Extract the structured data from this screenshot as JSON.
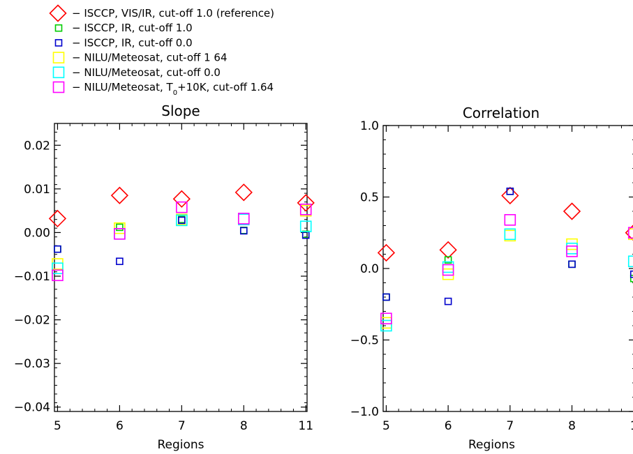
{
  "legend": {
    "entries": [
      {
        "label": "ISCCP, VIS/IR, cut-off 1.0 (reference)",
        "marker": "diamond",
        "color": "#ff0000"
      },
      {
        "label": "ISCCP, IR, cut-off 1.0",
        "marker": "small-square",
        "color": "#00cc00"
      },
      {
        "label": "ISCCP, IR, cut-off 0.0",
        "marker": "small-square",
        "color": "#0000cc"
      },
      {
        "label": "NILU/Meteosat, cut-off 1 64",
        "marker": "square",
        "color": "#ffff00"
      },
      {
        "label": "NILU/Meteosat, cut-off 0.0",
        "marker": "square",
        "color": "#00ffff"
      },
      {
        "label": "NILU/Meteosat, T",
        "label_subscript": "0",
        "label_suffix": "+10K, cut-off 1.64",
        "marker": "square",
        "color": "#ff00ff"
      }
    ]
  },
  "chart_data": [
    {
      "type": "scatter",
      "title": "Slope",
      "xlabel": "Regions",
      "ylabel": "",
      "categories": [
        "5",
        "6",
        "7",
        "8",
        "11"
      ],
      "xlim": [
        -0.05,
        4.02
      ],
      "ylim": [
        -0.041,
        0.025
      ],
      "yticks": [
        -0.04,
        -0.03,
        -0.02,
        -0.01,
        0.0,
        0.01,
        0.02
      ],
      "ytick_labels": [
        "−0.04",
        "−0.03",
        "−0.02",
        "−0.01",
        "0.00",
        "0.01",
        "0.02"
      ],
      "grid": false,
      "series": [
        {
          "name": "ISCCP, VIS/IR, cut-off 1.0 (reference)",
          "color": "#ff0000",
          "marker": "diamond",
          "values": [
            0.0032,
            0.0085,
            0.0077,
            0.0092,
            0.0068
          ]
        },
        {
          "name": "ISCCP, IR, cut-off 1.0",
          "color": "#00cc00",
          "marker": "small-square",
          "values": [
            -0.0038,
            0.0012,
            0.003,
            0.0005,
            -0.0004
          ]
        },
        {
          "name": "ISCCP, IR, cut-off 0.0",
          "color": "#0000cc",
          "marker": "small-square",
          "values": [
            -0.0038,
            -0.0066,
            0.0028,
            0.0004,
            -0.0006
          ]
        },
        {
          "name": "NILU/Meteosat, cut-off 1 64",
          "color": "#ffff00",
          "marker": "square",
          "values": [
            -0.0072,
            0.001,
            0.003,
            0.003,
            0.005
          ]
        },
        {
          "name": "NILU/Meteosat, cut-off 0.0",
          "color": "#00ffff",
          "marker": "square",
          "values": [
            -0.0082,
            -0.0003,
            0.0028,
            0.003,
            0.0014
          ]
        },
        {
          "name": "NILU/Meteosat, T0+10K, cut-off 1.64",
          "color": "#ff00ff",
          "marker": "square",
          "values": [
            -0.0098,
            -0.0003,
            0.0058,
            0.0032,
            0.0053
          ]
        }
      ]
    },
    {
      "type": "scatter",
      "title": "Correlation",
      "xlabel": "Regions",
      "ylabel": "",
      "categories": [
        "5",
        "6",
        "7",
        "8",
        "1"
      ],
      "xlim": [
        -0.05,
        4.02
      ],
      "ylim": [
        -1.0,
        1.0
      ],
      "yticks": [
        -1.0,
        -0.5,
        0.0,
        0.5,
        1.0
      ],
      "ytick_labels": [
        "−1.0",
        "−0.5",
        "0.0",
        "0.5",
        "1.0"
      ],
      "grid": false,
      "series": [
        {
          "name": "ISCCP, VIS/IR, cut-off 1.0 (reference)",
          "color": "#ff0000",
          "marker": "diamond",
          "values": [
            0.11,
            0.13,
            0.51,
            0.4,
            0.25
          ]
        },
        {
          "name": "ISCCP, IR, cut-off 1.0",
          "color": "#00cc00",
          "marker": "small-square",
          "values": [
            -0.2,
            0.06,
            0.54,
            0.03,
            -0.07
          ]
        },
        {
          "name": "ISCCP, IR, cut-off 0.0",
          "color": "#0000cc",
          "marker": "small-square",
          "values": [
            -0.2,
            -0.23,
            0.54,
            0.03,
            -0.04
          ]
        },
        {
          "name": "NILU/Meteosat, cut-off 1 64",
          "color": "#ffff00",
          "marker": "square",
          "values": [
            -0.38,
            -0.04,
            0.23,
            0.17,
            0.24
          ]
        },
        {
          "name": "NILU/Meteosat, cut-off 0.0",
          "color": "#00ffff",
          "marker": "square",
          "values": [
            -0.4,
            0.01,
            0.24,
            0.14,
            0.05
          ]
        },
        {
          "name": "NILU/Meteosat, T0+10K, cut-off 1.64",
          "color": "#ff00ff",
          "marker": "square",
          "values": [
            -0.35,
            -0.01,
            0.34,
            0.12,
            0.25
          ]
        }
      ]
    }
  ]
}
